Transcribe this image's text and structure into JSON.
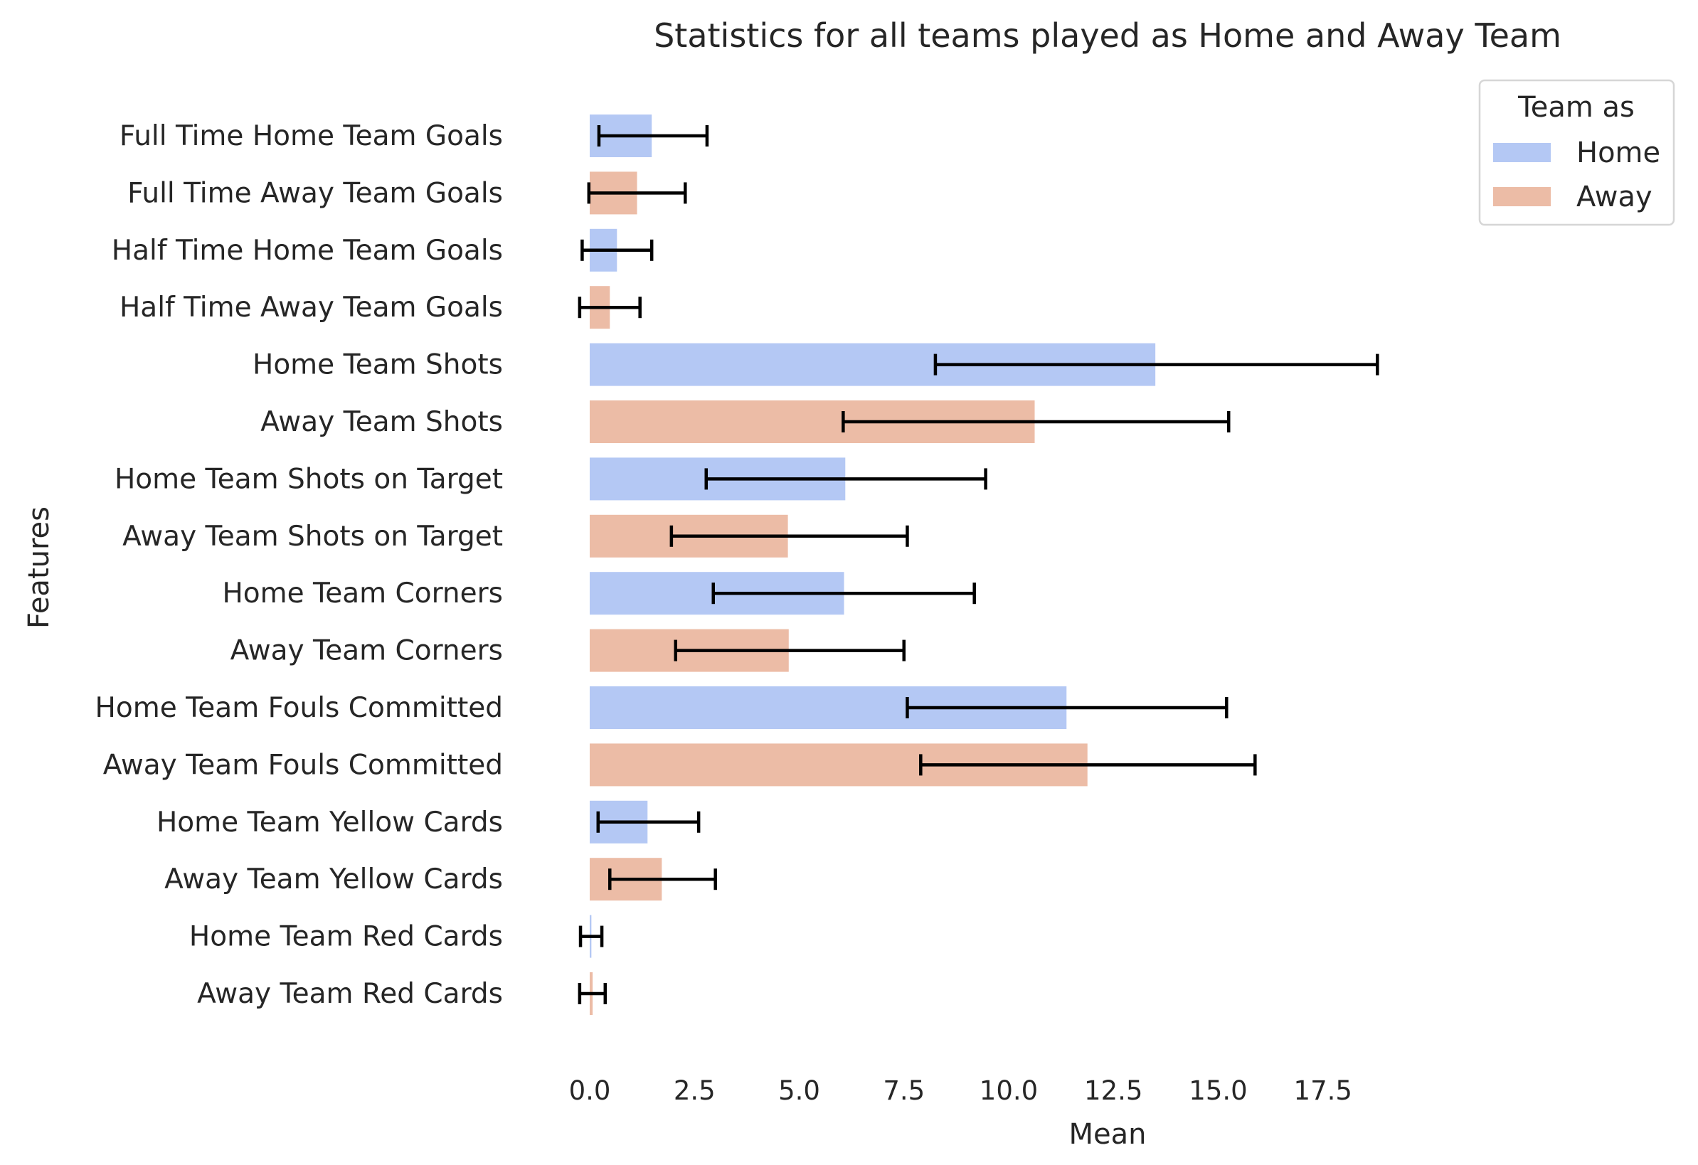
{
  "chart_data": {
    "type": "bar",
    "orientation": "horizontal",
    "title": "Statistics for all teams played as Home and Away Team",
    "xlabel": "Mean",
    "ylabel": "Features",
    "xlim": [
      -0.6,
      18.9
    ],
    "xticks": [
      0.0,
      2.5,
      5.0,
      7.5,
      10.0,
      12.5,
      15.0,
      17.5
    ],
    "xtick_labels": [
      "0.0",
      "2.5",
      "5.0",
      "7.5",
      "10.0",
      "12.5",
      "15.0",
      "17.5"
    ],
    "grid": false,
    "legend": {
      "title": "Team as",
      "placement": "top-right",
      "entries": [
        {
          "label": "Home",
          "color": "#b4c8f4"
        },
        {
          "label": "Away",
          "color": "#ecbca6"
        }
      ]
    },
    "bars": [
      {
        "label": "Full Time Home Team Goals",
        "group": "Home",
        "value": 1.48,
        "err_low": 0.22,
        "err_high": 2.8
      },
      {
        "label": "Full Time Away Team Goals",
        "group": "Away",
        "value": 1.13,
        "err_low": -0.02,
        "err_high": 2.28
      },
      {
        "label": "Half Time Home Team Goals",
        "group": "Home",
        "value": 0.65,
        "err_low": -0.18,
        "err_high": 1.48
      },
      {
        "label": "Half Time Away Team Goals",
        "group": "Away",
        "value": 0.48,
        "err_low": -0.24,
        "err_high": 1.2
      },
      {
        "label": "Home Team Shots",
        "group": "Home",
        "value": 13.5,
        "err_low": 8.25,
        "err_high": 18.8
      },
      {
        "label": "Away Team Shots",
        "group": "Away",
        "value": 10.62,
        "err_low": 6.05,
        "err_high": 15.25
      },
      {
        "label": "Home Team Shots on Target",
        "group": "Home",
        "value": 6.1,
        "err_low": 2.78,
        "err_high": 9.45
      },
      {
        "label": "Away Team Shots on Target",
        "group": "Away",
        "value": 4.73,
        "err_low": 1.95,
        "err_high": 7.58
      },
      {
        "label": "Home Team Corners",
        "group": "Home",
        "value": 6.07,
        "err_low": 2.95,
        "err_high": 9.18
      },
      {
        "label": "Away Team Corners",
        "group": "Away",
        "value": 4.75,
        "err_low": 2.05,
        "err_high": 7.5
      },
      {
        "label": "Home Team Fouls Committed",
        "group": "Home",
        "value": 11.38,
        "err_low": 7.58,
        "err_high": 15.2
      },
      {
        "label": "Away Team Fouls Committed",
        "group": "Away",
        "value": 11.88,
        "err_low": 7.9,
        "err_high": 15.88
      },
      {
        "label": "Home Team Yellow Cards",
        "group": "Home",
        "value": 1.38,
        "err_low": 0.2,
        "err_high": 2.6
      },
      {
        "label": "Away Team Yellow Cards",
        "group": "Away",
        "value": 1.72,
        "err_low": 0.48,
        "err_high": 3.0
      },
      {
        "label": "Home Team Red Cards",
        "group": "Home",
        "value": 0.04,
        "err_low": -0.22,
        "err_high": 0.29
      },
      {
        "label": "Away Team Red Cards",
        "group": "Away",
        "value": 0.07,
        "err_low": -0.24,
        "err_high": 0.37
      }
    ]
  }
}
